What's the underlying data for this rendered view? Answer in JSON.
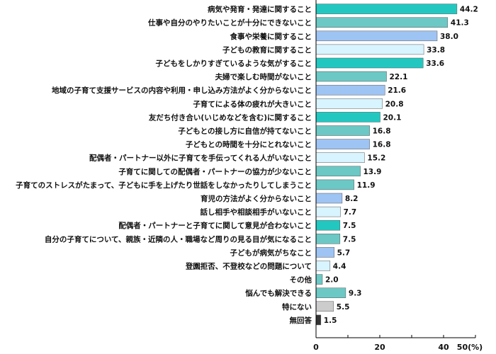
{
  "chart_data": {
    "type": "bar",
    "orientation": "horizontal",
    "title": "",
    "xlabel": "",
    "ylabel": "",
    "xlim": [
      0,
      50
    ],
    "x_ticks": [
      "0",
      "20",
      "40",
      "50(%)"
    ],
    "x_tick_values": [
      0,
      20,
      40,
      50
    ],
    "grid": false,
    "categories": [
      "病気や発育・発達に関すること",
      "仕事や自分のやりたいことが十分にできないこと",
      "食事や栄養に関すること",
      "子どもの教育に関すること",
      "子どもをしかりすぎているような気がすること",
      "夫婦で楽しむ時間がないこと",
      "地域の子育て支援サービスの内容や利用・申し込み方法がよく分からないこと",
      "子育てによる体の疲れが大きいこと",
      "友だち付き合い(いじめなどを含む)に関すること",
      "子どもとの接し方に自信が持てないこと",
      "子どもとの時間を十分にとれないこと",
      "配偶者・パートナー以外に子育てを手伝ってくれる人がいないこと",
      "子育てに関しての配偶者・パートナーの協力が少ないこと",
      "子育てのストレスがたまって、子どもに手を上げたり世話をしなかったりしてしまうこと",
      "育児の方法がよく分からないこと",
      "話し相手や相談相手がいないこと",
      "配偶者・パートナーと子育てに関して意見が合わないこと",
      "自分の子育てについて、親族・近隣の人・職場など周りの見る目が気になること",
      "子どもが病気がちなこと",
      "登園拒否、不登校などの問題について",
      "その他",
      "悩んでも解決できる",
      "特にない",
      "無回答"
    ],
    "values": [
      44.2,
      41.3,
      38.0,
      33.8,
      33.6,
      22.1,
      21.6,
      20.8,
      20.1,
      16.8,
      16.8,
      15.2,
      13.9,
      11.9,
      8.2,
      7.7,
      7.5,
      7.5,
      5.7,
      4.4,
      2.0,
      9.3,
      5.5,
      1.5
    ],
    "value_labels": [
      "44.2",
      "41.3",
      "38.0",
      "33.8",
      "33.6",
      "22.1",
      "21.6",
      "20.8",
      "20.1",
      "16.8",
      "16.8",
      "15.2",
      "13.9",
      "11.9",
      "8.2",
      "7.7",
      "7.5",
      "7.5",
      "5.7",
      "4.4",
      "2.0",
      "9.3",
      "5.5",
      "1.5"
    ],
    "bar_colors": [
      "#22c8c0",
      "#6cc8c4",
      "#9ec4f4",
      "#d8f4ff",
      "#22c8c0",
      "#6cc8c4",
      "#9ec4f4",
      "#d8f4ff",
      "#22c8c0",
      "#6cc8c4",
      "#9ec4f4",
      "#d8f4ff",
      "#6cc8c4",
      "#6cc8c4",
      "#9ec4f4",
      "#d8f4ff",
      "#22c8c0",
      "#6cc8c4",
      "#9ec4f4",
      "#d8f4ff",
      "#6cc8c4",
      "#6cc8c4",
      "#cccccc",
      "#333333"
    ]
  }
}
